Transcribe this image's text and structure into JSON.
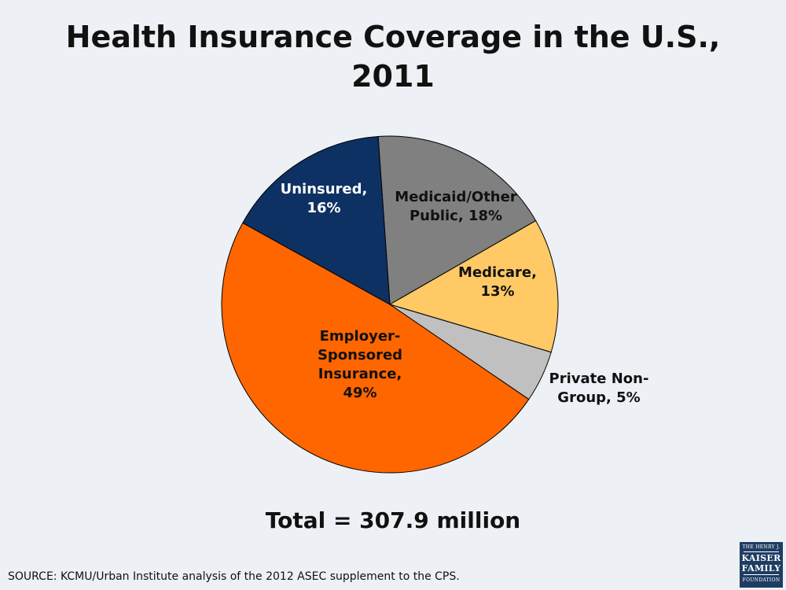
{
  "slide": {
    "title_line1": "Health Insurance Coverage in the U.S.,",
    "title_line2": "2011",
    "total": "Total = 307.9 million",
    "source": "SOURCE: KCMU/Urban Institute analysis of the 2012 ASEC supplement to the CPS.",
    "logo": {
      "line1": "THE HENRY J.",
      "line2": "KAISER",
      "line3": "FAMILY",
      "line4": "FOUNDATION"
    }
  },
  "chart_data": {
    "type": "pie",
    "title": "Health Insurance Coverage in the U.S., 2011",
    "start_angle_deg": -4,
    "slices": [
      {
        "name": "Medicaid/Other Public",
        "value": 18,
        "color": "#808080",
        "label_lines": [
          "Medicaid/Other",
          "Public, 18%"
        ],
        "label_color": "#111111"
      },
      {
        "name": "Medicare",
        "value": 13,
        "color": "#ffc966",
        "label_lines": [
          "Medicare,",
          "13%"
        ],
        "label_color": "#111111"
      },
      {
        "name": "Private Non-Group",
        "value": 5,
        "color": "#c0c0c0",
        "label_lines": [
          "Private Non-",
          "Group, 5%"
        ],
        "label_color": "#111111"
      },
      {
        "name": "Employer-Sponsored Insurance",
        "value": 49,
        "color": "#ff6600",
        "label_lines": [
          "Employer-",
          "Sponsored",
          "Insurance,",
          "49%"
        ],
        "label_color": "#111111"
      },
      {
        "name": "Uninsured",
        "value": 16,
        "color": "#0d3163",
        "label_lines": [
          "Uninsured,",
          "16%"
        ],
        "label_color": "#ffffff"
      }
    ],
    "total_label": "Total = 307.9 million",
    "legend": "none"
  }
}
